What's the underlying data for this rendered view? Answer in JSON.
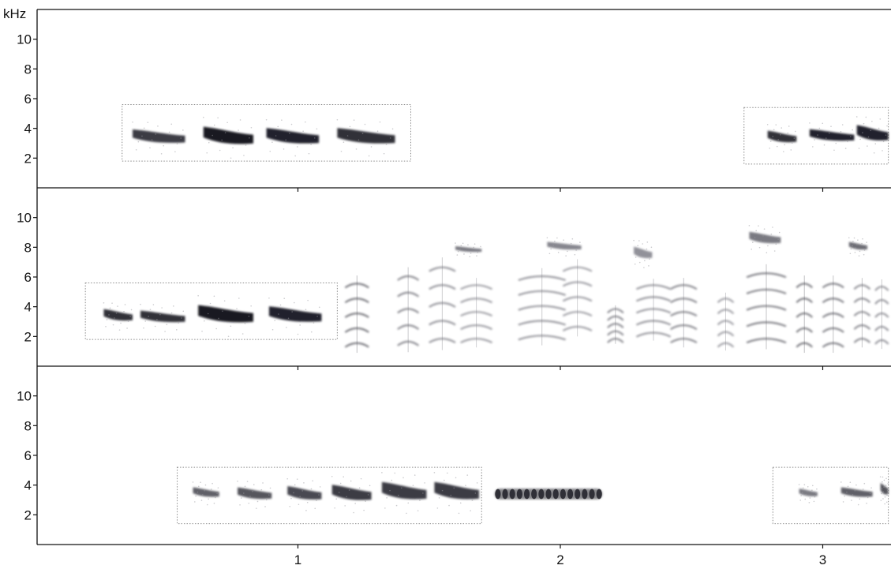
{
  "chart_data": {
    "type": "spectrogram",
    "y_unit_label": "kHz",
    "x_unit": "s",
    "y_unit": "kHz",
    "xlim": [
      0,
      3.25
    ],
    "x_ticks": [
      1,
      2,
      3
    ],
    "x_tick_labels": [
      "1",
      "2",
      "3"
    ],
    "y_ticks": [
      2,
      4,
      6,
      8,
      10
    ],
    "y_tick_labels": [
      "2",
      "4",
      "6",
      "8",
      "10"
    ],
    "grid": false,
    "panels": [
      {
        "ylim": [
          0,
          12
        ],
        "show_unit_label": true,
        "boxes": [
          {
            "t0": 0.33,
            "t1": 1.43,
            "f0": 1.8,
            "f1": 5.6
          },
          {
            "t0": 2.7,
            "t1": 3.25,
            "f0": 1.6,
            "f1": 5.4
          }
        ],
        "notes": [
          {
            "t0": 0.37,
            "t1": 0.57,
            "f": 3.3,
            "df": 0.7,
            "shape": "tonal",
            "dark": 0.8
          },
          {
            "t0": 0.64,
            "t1": 0.83,
            "f": 3.3,
            "df": 0.9,
            "shape": "tonal",
            "dark": 0.95
          },
          {
            "t0": 0.88,
            "t1": 1.08,
            "f": 3.3,
            "df": 0.8,
            "shape": "tonal",
            "dark": 0.9
          },
          {
            "t0": 1.15,
            "t1": 1.37,
            "f": 3.3,
            "df": 0.8,
            "shape": "tonal",
            "dark": 0.85
          },
          {
            "t0": 2.79,
            "t1": 2.9,
            "f": 3.3,
            "df": 0.6,
            "shape": "tonal",
            "dark": 0.85
          },
          {
            "t0": 2.95,
            "t1": 3.12,
            "f": 3.4,
            "df": 0.6,
            "shape": "tonal",
            "dark": 0.9
          },
          {
            "t0": 3.13,
            "t1": 3.25,
            "f": 3.5,
            "df": 0.8,
            "shape": "tonal",
            "dark": 0.9
          }
        ]
      },
      {
        "ylim": [
          0,
          12
        ],
        "show_unit_label": false,
        "boxes": [
          {
            "t0": 0.19,
            "t1": 1.15,
            "f0": 1.8,
            "f1": 5.6
          }
        ],
        "notes": [
          {
            "t0": 0.26,
            "t1": 0.37,
            "f": 3.3,
            "df": 0.6,
            "shape": "tonal",
            "dark": 0.85
          },
          {
            "t0": 0.4,
            "t1": 0.57,
            "f": 3.2,
            "df": 0.6,
            "shape": "tonal",
            "dark": 0.85
          },
          {
            "t0": 0.62,
            "t1": 0.83,
            "f": 3.3,
            "df": 0.9,
            "shape": "tonal",
            "dark": 0.95
          },
          {
            "t0": 0.89,
            "t1": 1.09,
            "f": 3.3,
            "df": 0.8,
            "shape": "tonal",
            "dark": 0.9
          },
          {
            "t0": 1.18,
            "t1": 1.27,
            "f": 3.5,
            "df": 2.0,
            "shape": "harmonic",
            "dark": 0.7
          },
          {
            "t0": 1.38,
            "t1": 1.46,
            "f": 3.8,
            "df": 2.2,
            "shape": "harmonic",
            "dark": 0.6
          },
          {
            "t0": 1.5,
            "t1": 1.6,
            "f": 4.2,
            "df": 2.4,
            "shape": "harmonic",
            "dark": 0.55
          },
          {
            "t0": 1.6,
            "t1": 1.7,
            "f": 7.8,
            "df": 0.3,
            "shape": "tonal",
            "dark": 0.55
          },
          {
            "t0": 1.62,
            "t1": 1.74,
            "f": 3.6,
            "df": 1.8,
            "shape": "harmonic",
            "dark": 0.5
          },
          {
            "t0": 1.84,
            "t1": 2.02,
            "f": 4.0,
            "df": 2.0,
            "shape": "harmonic",
            "dark": 0.55
          },
          {
            "t0": 1.95,
            "t1": 2.08,
            "f": 8.0,
            "df": 0.4,
            "shape": "tonal",
            "dark": 0.5
          },
          {
            "t0": 2.01,
            "t1": 2.12,
            "f": 4.6,
            "df": 2.0,
            "shape": "harmonic",
            "dark": 0.5
          },
          {
            "t0": 2.18,
            "t1": 2.24,
            "f": 2.8,
            "df": 1.0,
            "shape": "harmonic",
            "dark": 0.6
          },
          {
            "t0": 2.28,
            "t1": 2.35,
            "f": 7.5,
            "df": 0.6,
            "shape": "tonal",
            "dark": 0.45
          },
          {
            "t0": 2.29,
            "t1": 2.42,
            "f": 3.8,
            "df": 1.6,
            "shape": "harmonic",
            "dark": 0.55
          },
          {
            "t0": 2.42,
            "t1": 2.52,
            "f": 3.6,
            "df": 1.8,
            "shape": "harmonic",
            "dark": 0.6
          },
          {
            "t0": 2.6,
            "t1": 2.66,
            "f": 3.0,
            "df": 1.5,
            "shape": "harmonic",
            "dark": 0.5
          },
          {
            "t0": 2.71,
            "t1": 2.86,
            "f": 4.0,
            "df": 2.2,
            "shape": "harmonic",
            "dark": 0.65
          },
          {
            "t0": 2.72,
            "t1": 2.84,
            "f": 8.5,
            "df": 0.6,
            "shape": "tonal",
            "dark": 0.55
          },
          {
            "t0": 2.9,
            "t1": 2.96,
            "f": 3.5,
            "df": 2.0,
            "shape": "harmonic",
            "dark": 0.7
          },
          {
            "t0": 3.0,
            "t1": 3.08,
            "f": 3.5,
            "df": 2.0,
            "shape": "harmonic",
            "dark": 0.65
          },
          {
            "t0": 3.1,
            "t1": 3.17,
            "f": 8.0,
            "df": 0.4,
            "shape": "tonal",
            "dark": 0.6
          },
          {
            "t0": 3.12,
            "t1": 3.18,
            "f": 3.6,
            "df": 1.8,
            "shape": "harmonic",
            "dark": 0.6
          },
          {
            "t0": 3.2,
            "t1": 3.25,
            "f": 3.5,
            "df": 1.8,
            "shape": "harmonic",
            "dark": 0.55
          }
        ]
      },
      {
        "ylim": [
          0,
          12
        ],
        "show_unit_label": false,
        "boxes": [
          {
            "t0": 0.54,
            "t1": 1.7,
            "f0": 1.4,
            "f1": 5.2
          },
          {
            "t0": 2.81,
            "t1": 3.25,
            "f0": 1.4,
            "f1": 5.2
          }
        ],
        "notes": [
          {
            "t0": 0.6,
            "t1": 0.7,
            "f": 3.4,
            "df": 0.5,
            "shape": "tonal",
            "dark": 0.65
          },
          {
            "t0": 0.77,
            "t1": 0.9,
            "f": 3.3,
            "df": 0.6,
            "shape": "tonal",
            "dark": 0.7
          },
          {
            "t0": 0.96,
            "t1": 1.09,
            "f": 3.3,
            "df": 0.7,
            "shape": "tonal",
            "dark": 0.75
          },
          {
            "t0": 1.13,
            "t1": 1.28,
            "f": 3.3,
            "df": 0.8,
            "shape": "tonal",
            "dark": 0.8
          },
          {
            "t0": 1.32,
            "t1": 1.49,
            "f": 3.4,
            "df": 0.9,
            "shape": "tonal",
            "dark": 0.8
          },
          {
            "t0": 1.52,
            "t1": 1.69,
            "f": 3.4,
            "df": 0.9,
            "shape": "tonal",
            "dark": 0.8
          },
          {
            "t0": 1.75,
            "t1": 2.16,
            "f": 3.4,
            "df": 0.8,
            "shape": "trill",
            "dark": 0.85
          },
          {
            "t0": 2.91,
            "t1": 2.98,
            "f": 3.4,
            "df": 0.4,
            "shape": "tonal",
            "dark": 0.55
          },
          {
            "t0": 3.07,
            "t1": 3.19,
            "f": 3.4,
            "df": 0.5,
            "shape": "tonal",
            "dark": 0.65
          },
          {
            "t0": 3.22,
            "t1": 3.25,
            "f": 3.6,
            "df": 0.6,
            "shape": "tonal",
            "dark": 0.7
          }
        ]
      }
    ]
  }
}
